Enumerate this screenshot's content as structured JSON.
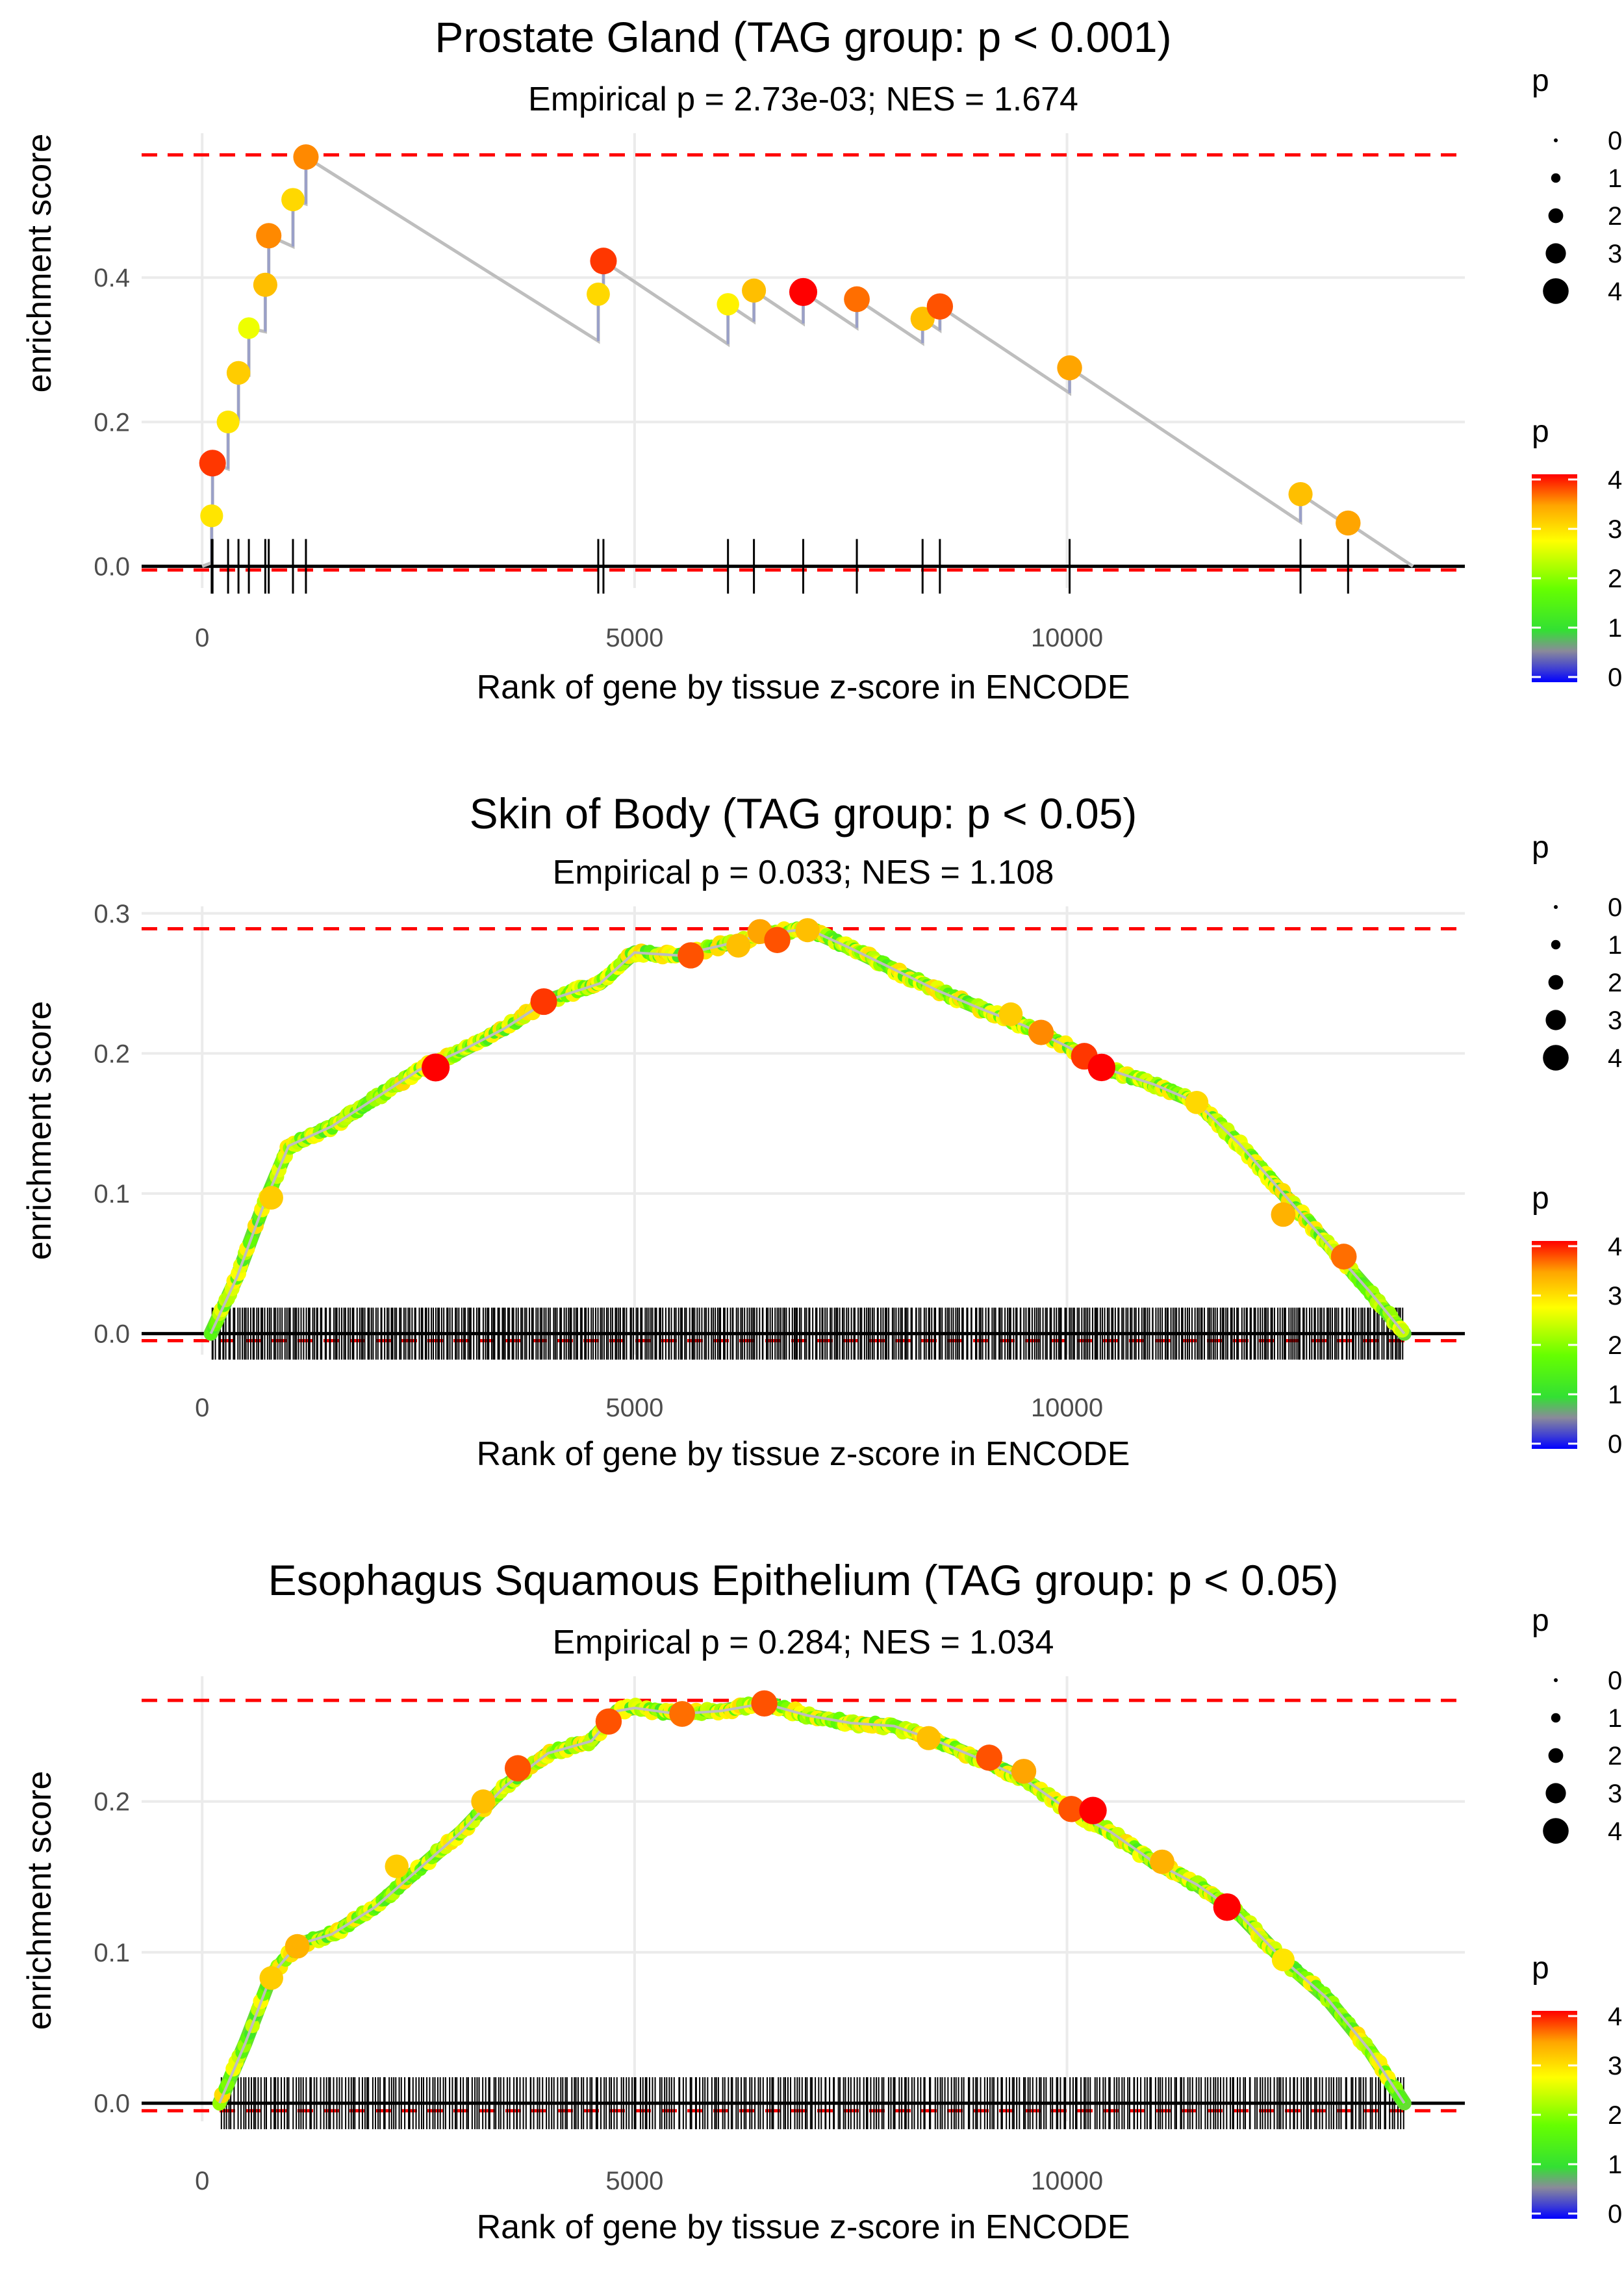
{
  "chart_data": [
    {
      "type": "line",
      "title": "Prostate Gland (TAG group: p < 0.001)",
      "subtitle": "Empirical p = 2.73e-03; NES = 1.674",
      "xlabel": "Rank of gene by tissue z-score in ENCODE",
      "ylabel": "enrichment score",
      "xlim": [
        -700,
        14600
      ],
      "ylim": [
        -0.03,
        0.6
      ],
      "xticks": [
        0,
        5000,
        10000
      ],
      "yticks": [
        0.0,
        0.2,
        0.4
      ],
      "max_es": 0.57,
      "min_es": -0.005,
      "end_x": 14000,
      "mode": "sparse",
      "points": [
        [
          110,
          0.07,
          2.9
        ],
        [
          120,
          0.143,
          3.8
        ],
        [
          300,
          0.2,
          2.9
        ],
        [
          420,
          0.268,
          3.1
        ],
        [
          540,
          0.33,
          2.6
        ],
        [
          730,
          0.39,
          3.2
        ],
        [
          770,
          0.458,
          3.5
        ],
        [
          1050,
          0.508,
          3.0
        ],
        [
          1200,
          0.567,
          3.5
        ],
        [
          4580,
          0.377,
          3.0
        ],
        [
          4640,
          0.423,
          3.8
        ],
        [
          6080,
          0.363,
          2.8
        ],
        [
          6380,
          0.382,
          3.2
        ],
        [
          6950,
          0.38,
          4.1
        ],
        [
          7570,
          0.37,
          3.6
        ],
        [
          8330,
          0.343,
          3.2
        ],
        [
          8530,
          0.36,
          3.7
        ],
        [
          10030,
          0.275,
          3.4
        ],
        [
          12700,
          0.1,
          3.2
        ],
        [
          13250,
          0.06,
          3.4
        ]
      ]
    },
    {
      "type": "line",
      "title": "Skin of Body (TAG group: p < 0.05)",
      "subtitle": "Empirical p = 0.033; NES = 1.108",
      "xlabel": "Rank of gene by tissue z-score in ENCODE",
      "ylabel": "enrichment score",
      "xlim": [
        -700,
        14600
      ],
      "ylim": [
        -0.015,
        0.305
      ],
      "xticks": [
        0,
        5000,
        10000
      ],
      "yticks": [
        0.0,
        0.1,
        0.2,
        0.3
      ],
      "max_es": 0.289,
      "min_es": -0.005,
      "end_x": 14000,
      "mode": "dense",
      "n_hits": 560,
      "curve": [
        [
          100,
          0.0
        ],
        [
          400,
          0.04
        ],
        [
          700,
          0.09
        ],
        [
          1000,
          0.134
        ],
        [
          1500,
          0.148
        ],
        [
          2000,
          0.168
        ],
        [
          2500,
          0.188
        ],
        [
          3000,
          0.202
        ],
        [
          3500,
          0.218
        ],
        [
          4000,
          0.238
        ],
        [
          4600,
          0.25
        ],
        [
          5000,
          0.272
        ],
        [
          5500,
          0.27
        ],
        [
          6000,
          0.277
        ],
        [
          6500,
          0.285
        ],
        [
          7000,
          0.289
        ],
        [
          7500,
          0.275
        ],
        [
          8000,
          0.26
        ],
        [
          8500,
          0.245
        ],
        [
          9000,
          0.232
        ],
        [
          9500,
          0.22
        ],
        [
          10000,
          0.205
        ],
        [
          10500,
          0.188
        ],
        [
          11000,
          0.178
        ],
        [
          11500,
          0.165
        ],
        [
          12000,
          0.135
        ],
        [
          12500,
          0.1
        ],
        [
          13000,
          0.065
        ],
        [
          13500,
          0.03
        ],
        [
          13900,
          0.0
        ]
      ],
      "big_points": [
        [
          800,
          0.097,
          3.1
        ],
        [
          2700,
          0.19,
          4.1
        ],
        [
          3950,
          0.237,
          3.8
        ],
        [
          5650,
          0.27,
          3.7
        ],
        [
          6200,
          0.277,
          3.2
        ],
        [
          6450,
          0.287,
          3.4
        ],
        [
          6650,
          0.281,
          3.7
        ],
        [
          7000,
          0.288,
          3.2
        ],
        [
          9350,
          0.228,
          3.1
        ],
        [
          9700,
          0.215,
          3.5
        ],
        [
          10200,
          0.198,
          3.8
        ],
        [
          10400,
          0.19,
          4.0
        ],
        [
          11500,
          0.165,
          3.0
        ],
        [
          12500,
          0.085,
          3.3
        ],
        [
          13200,
          0.055,
          3.6
        ]
      ]
    },
    {
      "type": "line",
      "title": "Esophagus Squamous Epithelium (TAG group: p < 0.05)",
      "subtitle": "Empirical p = 0.284; NES = 1.034",
      "xlabel": "Rank of gene by tissue z-score in ENCODE",
      "ylabel": "enrichment score",
      "xlim": [
        -700,
        14600
      ],
      "ylim": [
        -0.012,
        0.283
      ],
      "xticks": [
        0,
        5000,
        10000
      ],
      "yticks": [
        0.0,
        0.1,
        0.2
      ],
      "max_es": 0.267,
      "min_es": -0.005,
      "end_x": 14000,
      "mode": "dense",
      "n_hits": 430,
      "curve": [
        [
          200,
          0.0
        ],
        [
          500,
          0.04
        ],
        [
          800,
          0.085
        ],
        [
          1100,
          0.105
        ],
        [
          1500,
          0.112
        ],
        [
          2000,
          0.13
        ],
        [
          2500,
          0.155
        ],
        [
          3000,
          0.18
        ],
        [
          3500,
          0.21
        ],
        [
          4000,
          0.232
        ],
        [
          4500,
          0.24
        ],
        [
          4800,
          0.26
        ],
        [
          5000,
          0.262
        ],
        [
          5500,
          0.258
        ],
        [
          6000,
          0.26
        ],
        [
          6500,
          0.265
        ],
        [
          7000,
          0.257
        ],
        [
          7500,
          0.252
        ],
        [
          8000,
          0.25
        ],
        [
          8500,
          0.24
        ],
        [
          9000,
          0.228
        ],
        [
          9500,
          0.215
        ],
        [
          10000,
          0.195
        ],
        [
          10500,
          0.18
        ],
        [
          11000,
          0.16
        ],
        [
          11500,
          0.145
        ],
        [
          12000,
          0.125
        ],
        [
          12500,
          0.095
        ],
        [
          13000,
          0.07
        ],
        [
          13500,
          0.035
        ],
        [
          13900,
          0.0
        ]
      ],
      "big_points": [
        [
          800,
          0.083,
          3.1
        ],
        [
          1100,
          0.104,
          3.3
        ],
        [
          2250,
          0.157,
          3.1
        ],
        [
          3250,
          0.2,
          3.2
        ],
        [
          3650,
          0.222,
          3.7
        ],
        [
          4700,
          0.253,
          3.7
        ],
        [
          5550,
          0.258,
          3.6
        ],
        [
          6500,
          0.265,
          3.7
        ],
        [
          8400,
          0.242,
          3.2
        ],
        [
          9100,
          0.229,
          3.7
        ],
        [
          9500,
          0.22,
          3.4
        ],
        [
          10050,
          0.195,
          3.7
        ],
        [
          10300,
          0.194,
          4.0
        ],
        [
          11100,
          0.16,
          3.3
        ],
        [
          11850,
          0.13,
          4.0
        ],
        [
          12500,
          0.095,
          2.9
        ]
      ]
    }
  ],
  "legend": {
    "size_title": "p",
    "size_labels": [
      "0",
      "1",
      "2",
      "3",
      "4"
    ],
    "color_title": "p",
    "color_labels": [
      "0",
      "1",
      "2",
      "3",
      "4"
    ]
  },
  "colors": {
    "ref_line": "#ff0000",
    "curve": "#bebebe",
    "ticks": "#000000",
    "grid": "#ebebeb"
  }
}
